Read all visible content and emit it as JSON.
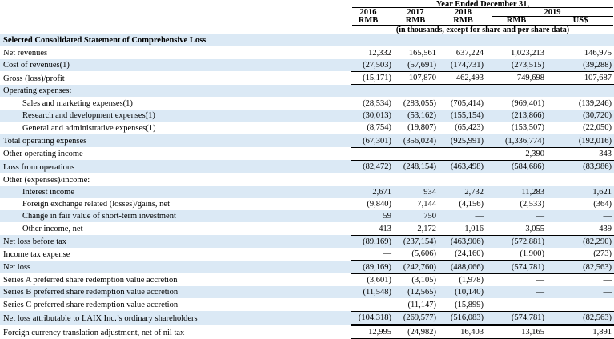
{
  "header": {
    "period": "Year Ended December 31,",
    "years": [
      "2016",
      "2017",
      "2018",
      "2019"
    ],
    "currencies": [
      "RMB",
      "RMB",
      "RMB",
      "RMB",
      "US$"
    ],
    "units_note": "(in thousands, except for share and per share data)"
  },
  "rows": [
    {
      "label": "Selected Consolidated Statement of Comprehensive Loss",
      "values": [
        "",
        "",
        "",
        "",
        ""
      ],
      "section": true,
      "shade": true
    },
    {
      "label": "Net revenues",
      "values": [
        "12,332",
        "165,561",
        "637,224",
        "1,023,213",
        "146,975"
      ]
    },
    {
      "label": "Cost of revenues(1)",
      "values": [
        "(27,503)",
        "(57,691)",
        "(174,731)",
        "(273,515)",
        "(39,288)"
      ],
      "shade": true,
      "rule": "single"
    },
    {
      "label": "Gross (loss)/profit",
      "values": [
        "(15,171)",
        "107,870",
        "462,493",
        "749,698",
        "107,687"
      ],
      "rule": "single"
    },
    {
      "label": "Operating expenses:",
      "values": [
        "",
        "",
        "",
        "",
        ""
      ],
      "shade": true
    },
    {
      "label": "Sales and marketing expenses(1)",
      "values": [
        "(28,534)",
        "(283,055)",
        "(705,414)",
        "(969,401)",
        "(139,246)"
      ],
      "indent": true
    },
    {
      "label": "Research and development expenses(1)",
      "values": [
        "(30,013)",
        "(53,162)",
        "(155,154)",
        "(213,866)",
        "(30,720)"
      ],
      "indent": true,
      "shade": true
    },
    {
      "label": "General and administrative expenses(1)",
      "values": [
        "(8,754)",
        "(19,807)",
        "(65,423)",
        "(153,507)",
        "(22,050)"
      ],
      "indent": true,
      "rule": "single"
    },
    {
      "label": "Total operating expenses",
      "values": [
        "(67,301)",
        "(356,024)",
        "(925,991)",
        "(1,336,774)",
        "(192,016)"
      ],
      "shade": true,
      "rule": "single"
    },
    {
      "label": "Other operating income",
      "values": [
        "—",
        "—",
        "—",
        "2,390",
        "343"
      ],
      "rule": "single"
    },
    {
      "label": "Loss from operations",
      "values": [
        "(82,472)",
        "(248,154)",
        "(463,498)",
        "(584,686)",
        "(83,986)"
      ],
      "shade": true,
      "rule": "single"
    },
    {
      "label": "Other (expenses)/income:",
      "values": [
        "",
        "",
        "",
        "",
        ""
      ]
    },
    {
      "label": "Interest income",
      "values": [
        "2,671",
        "934",
        "2,732",
        "11,283",
        "1,621"
      ],
      "indent": true,
      "shade": true
    },
    {
      "label": "Foreign exchange related (losses)/gains, net",
      "values": [
        "(9,840)",
        "7,144",
        "(4,156)",
        "(2,533)",
        "(364)"
      ],
      "indent": true
    },
    {
      "label": "Change in fair value of short-term investment",
      "values": [
        "59",
        "750",
        "—",
        "—",
        "—"
      ],
      "indent": true,
      "shade": true
    },
    {
      "label": "Other income, net",
      "values": [
        "413",
        "2,172",
        "1,016",
        "3,055",
        "439"
      ],
      "indent": true,
      "rule": "single"
    },
    {
      "label": "Net loss before tax",
      "values": [
        "(89,169)",
        "(237,154)",
        "(463,906)",
        "(572,881)",
        "(82,290)"
      ],
      "shade": true
    },
    {
      "label": "Income tax expense",
      "values": [
        "—",
        "(5,606)",
        "(24,160)",
        "(1,900)",
        "(273)"
      ],
      "rule": "single"
    },
    {
      "label": "Net loss",
      "values": [
        "(89,169)",
        "(242,760)",
        "(488,066)",
        "(574,781)",
        "(82,563)"
      ],
      "shade": true,
      "rule": "single"
    },
    {
      "label": "Series A preferred share redemption value accretion",
      "values": [
        "(3,601)",
        "(3,105)",
        "(1,978)",
        "—",
        "—"
      ]
    },
    {
      "label": "Series B preferred share redemption value accretion",
      "values": [
        "(11,548)",
        "(12,565)",
        "(10,140)",
        "—",
        "—"
      ],
      "shade": true
    },
    {
      "label": "Series C preferred share redemption value accretion",
      "values": [
        "—",
        "(11,147)",
        "(15,899)",
        "—",
        "—"
      ],
      "rule": "single"
    },
    {
      "label": "Net loss attributable to LAIX Inc.’s ordinary shareholders",
      "values": [
        "(104,318)",
        "(269,577)",
        "(516,083)",
        "(574,781)",
        "(82,563)"
      ],
      "shade": true,
      "rule": "double"
    },
    {
      "label": "Foreign currency translation adjustment, net of nil tax",
      "values": [
        "12,995",
        "(24,982)",
        "16,403",
        "13,165",
        "1,891"
      ],
      "rule": "single"
    }
  ]
}
